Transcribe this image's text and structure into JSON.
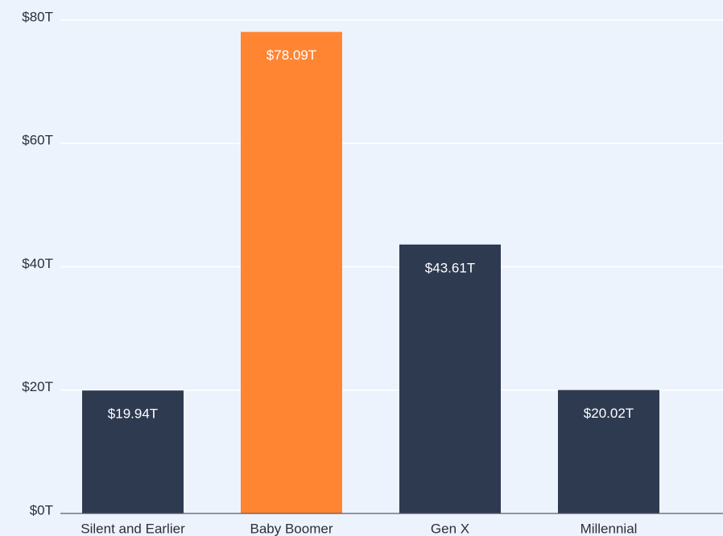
{
  "chart_data": {
    "type": "bar",
    "categories": [
      "Silent and Earlier",
      "Baby Boomer",
      "Gen X",
      "Millennial"
    ],
    "values": [
      19.94,
      78.09,
      43.61,
      20.02
    ],
    "value_labels": [
      "$19.94T",
      "$78.09T",
      "$43.61T",
      "$20.02T"
    ],
    "colors": [
      "#2e3a50",
      "#ff8533",
      "#2e3a50",
      "#2e3a50"
    ],
    "ylim": [
      0,
      80
    ],
    "yticks": [
      {
        "value": 0,
        "label": "$0T"
      },
      {
        "value": 20,
        "label": "$20T"
      },
      {
        "value": 40,
        "label": "$40T"
      },
      {
        "value": 60,
        "label": "$60T"
      },
      {
        "value": 80,
        "label": "$80T"
      }
    ],
    "grid": true
  }
}
